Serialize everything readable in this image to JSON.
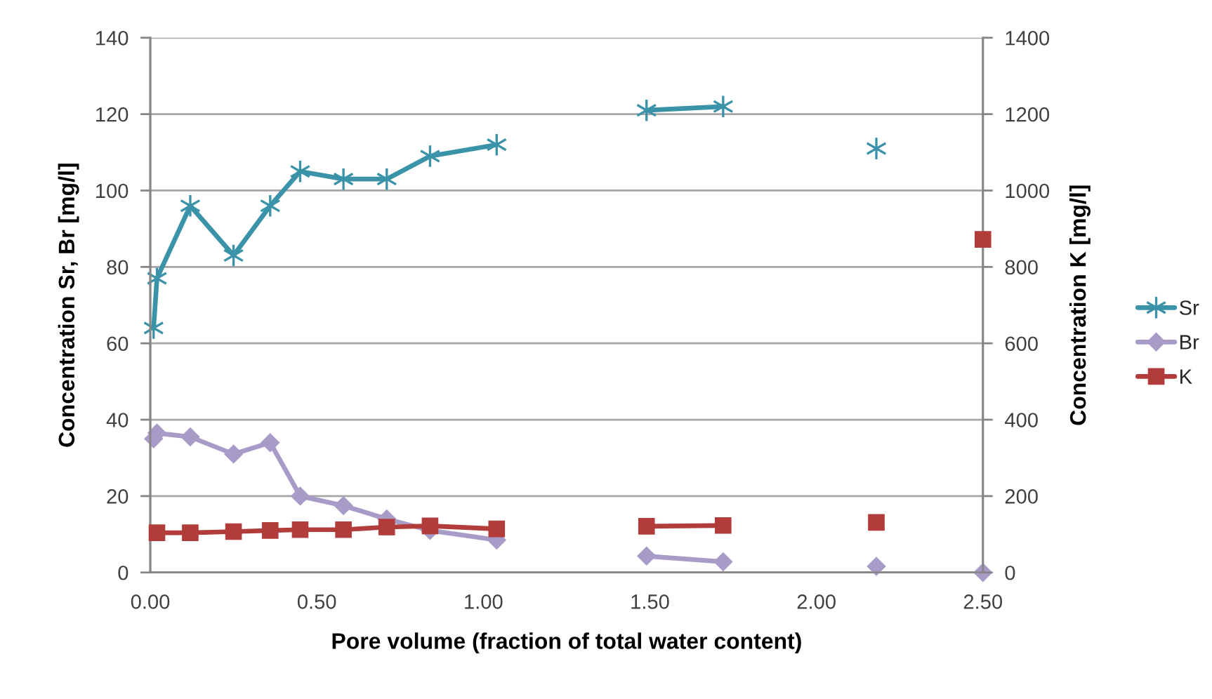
{
  "chart_data": {
    "type": "line",
    "xlabel": "Pore volume (fraction of total water content)",
    "ylabel": "Concentration Sr, Br [mg/l]",
    "y2label": "Concentration K [mg/l]",
    "xlim": [
      0,
      2.5
    ],
    "xticks": [
      {
        "value": 0,
        "label": "0.00"
      },
      {
        "value": 0.5,
        "label": "0.50"
      },
      {
        "value": 1,
        "label": "1.00"
      },
      {
        "value": 1.5,
        "label": "1.50"
      },
      {
        "value": 2,
        "label": "2.00"
      },
      {
        "value": 2.5,
        "label": "2.50"
      }
    ],
    "ylim": [
      0,
      140
    ],
    "yticks": [
      0,
      20,
      40,
      60,
      80,
      100,
      120,
      140
    ],
    "y2lim": [
      0,
      1400
    ],
    "y2ticks": [
      0,
      200,
      400,
      600,
      800,
      1000,
      1200,
      1400
    ],
    "grid": "y",
    "legend": "right",
    "line_style": "solid",
    "series": [
      {
        "name": "Sr",
        "color": "#3a93a8",
        "marker": "cross",
        "x": [
          0.01,
          0.02,
          0.12,
          0.25,
          0.36,
          0.45,
          0.58,
          0.71,
          0.84,
          1.04,
          1.25,
          1.49,
          1.72,
          1.95,
          2.18
        ],
        "values": [
          64,
          77,
          96,
          83,
          96,
          105,
          103,
          103,
          109,
          112,
          null,
          121,
          122,
          null,
          111
        ]
      },
      {
        "name": "Br",
        "color": "#a99bc8",
        "marker": "diamond",
        "x": [
          0.01,
          0.02,
          0.12,
          0.25,
          0.36,
          0.45,
          0.58,
          0.71,
          0.84,
          1.04,
          1.25,
          1.49,
          1.72,
          1.95,
          2.18,
          2.35,
          2.5
        ],
        "values": [
          35,
          36.5,
          35.5,
          31,
          34,
          20,
          17.5,
          14,
          11,
          8.5,
          null,
          4.3,
          2.8,
          null,
          1.6,
          null,
          0
        ]
      },
      {
        "name": "K",
        "color": "#b23c3a",
        "marker": "square",
        "axis": "y2",
        "x": [
          0.02,
          0.12,
          0.25,
          0.36,
          0.45,
          0.58,
          0.71,
          0.84,
          1.04,
          1.25,
          1.49,
          1.72,
          1.95,
          2.18,
          2.35,
          2.5
        ],
        "values": [
          104,
          104,
          107,
          110,
          112,
          112,
          119,
          122,
          114,
          null,
          121,
          123,
          null,
          131,
          null,
          872
        ]
      }
    ]
  }
}
